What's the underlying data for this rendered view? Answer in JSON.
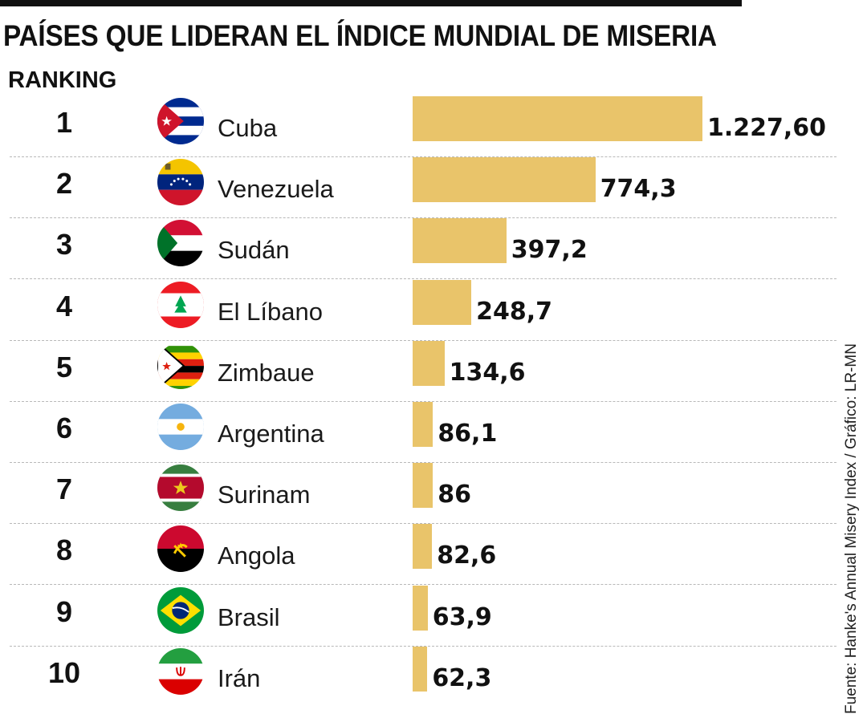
{
  "chart_data": {
    "type": "bar",
    "orientation": "horizontal",
    "title": "PAÍSES QUE LIDERAN EL ÍNDICE MUNDIAL DE MISERIA",
    "subtitle": "RANKING",
    "xlim": [
      0,
      1227.6
    ],
    "grid": false,
    "legend": "none",
    "bar_color": "#e9c46a",
    "ranks": [
      "1",
      "2",
      "3",
      "4",
      "5",
      "6",
      "7",
      "8",
      "9",
      "10"
    ],
    "categories": [
      "Cuba",
      "Venezuela",
      "Sudán",
      "El Líbano",
      "Zimbaue",
      "Argentina",
      "Surinam",
      "Angola",
      "Brasil",
      "Irán"
    ],
    "values": [
      1227.6,
      774.3,
      397.2,
      248.7,
      134.6,
      86.1,
      86,
      82.6,
      63.9,
      62.3
    ],
    "value_labels": [
      "1.227,60",
      "774,3",
      "397,2",
      "248,7",
      "134,6",
      "86,1",
      "86",
      "82,6",
      "63,9",
      "62,3"
    ],
    "flag_icons": [
      "cuba-flag-icon",
      "venezuela-flag-icon",
      "sudan-flag-icon",
      "lebanon-flag-icon",
      "zimbabwe-flag-icon",
      "argentina-flag-icon",
      "suriname-flag-icon",
      "angola-flag-icon",
      "brazil-flag-icon",
      "iran-flag-icon"
    ],
    "source": "Fuente: Hanke's Annual Misery Index  / Gráfico: LR-MN"
  }
}
